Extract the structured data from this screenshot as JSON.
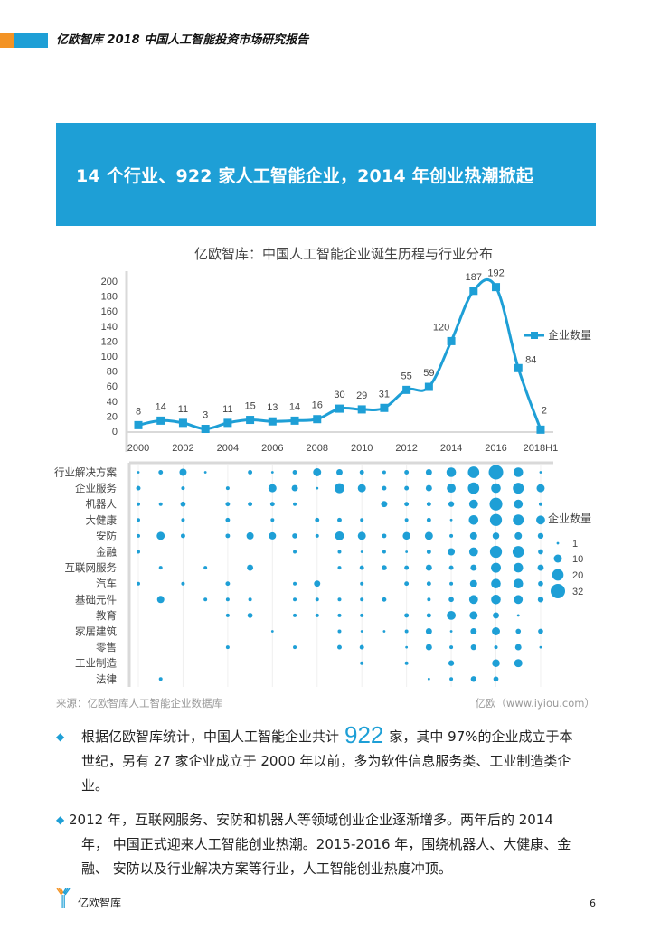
{
  "header": {
    "title": "亿欧智库 2018 中国人工智能投资市场研究报告",
    "accent_orange": "#f39325",
    "accent_blue": "#1e9fd6"
  },
  "banner": {
    "text": "14 个行业、922 家人工智能企业，2014 年创业热潮掀起"
  },
  "chart_data": [
    {
      "type": "line",
      "title": "亿欧智库：中国人工智能企业诞生历程与行业分布",
      "categories": [
        "2000",
        "2001",
        "2002",
        "2003",
        "2004",
        "2005",
        "2006",
        "2007",
        "2008",
        "2009",
        "2010",
        "2011",
        "2012",
        "2013",
        "2014",
        "2015",
        "2016",
        "2017",
        "2018H1"
      ],
      "x_tick_labels": [
        "2000",
        "2002",
        "2004",
        "2006",
        "2008",
        "2010",
        "2012",
        "2014",
        "2016",
        "2018H1"
      ],
      "series": [
        {
          "name": "企业数量",
          "values": [
            8,
            14,
            11,
            3,
            11,
            15,
            13,
            14,
            16,
            30,
            29,
            31,
            55,
            59,
            120,
            187,
            192,
            84,
            2
          ]
        }
      ],
      "ylim": [
        0,
        200
      ],
      "y_ticks": [
        0,
        20,
        40,
        60,
        80,
        100,
        120,
        140,
        160,
        180,
        200
      ],
      "legend": "企业数量",
      "legend_position": "right",
      "color": "#1e9fd6"
    },
    {
      "type": "scatter",
      "subtype": "bubble",
      "x": [
        "2000",
        "2001",
        "2002",
        "2003",
        "2004",
        "2005",
        "2006",
        "2007",
        "2008",
        "2009",
        "2010",
        "2011",
        "2012",
        "2013",
        "2014",
        "2015",
        "2016",
        "2017",
        "2018H1"
      ],
      "rows": [
        "行业解决方案",
        "企业服务",
        "机器人",
        "大健康",
        "安防",
        "金融",
        "互联网服务",
        "汽车",
        "基础元件",
        "教育",
        "家居建筑",
        "零售",
        "工业制造",
        "法律"
      ],
      "values": [
        [
          1,
          3,
          8,
          1,
          0,
          3,
          1,
          3,
          10,
          6,
          3,
          2,
          3,
          6,
          14,
          20,
          32,
          14,
          1
        ],
        [
          3,
          0,
          2,
          0,
          2,
          0,
          10,
          6,
          1,
          15,
          10,
          3,
          3,
          6,
          12,
          20,
          14,
          18,
          10
        ],
        [
          2,
          2,
          4,
          0,
          3,
          3,
          3,
          2,
          0,
          0,
          0,
          6,
          3,
          3,
          5,
          12,
          25,
          12,
          2
        ],
        [
          2,
          0,
          2,
          0,
          3,
          0,
          2,
          0,
          3,
          3,
          2,
          0,
          2,
          3,
          1,
          14,
          22,
          18,
          12
        ],
        [
          2,
          10,
          3,
          0,
          3,
          8,
          8,
          4,
          2,
          12,
          10,
          3,
          9,
          10,
          2,
          8,
          7,
          8,
          5
        ],
        [
          2,
          0,
          0,
          0,
          0,
          0,
          0,
          2,
          0,
          2,
          1,
          2,
          1,
          3,
          8,
          12,
          22,
          20,
          4
        ],
        [
          0,
          2,
          0,
          2,
          0,
          6,
          0,
          0,
          0,
          2,
          3,
          4,
          3,
          6,
          3,
          6,
          15,
          14,
          6
        ],
        [
          2,
          0,
          2,
          0,
          3,
          0,
          0,
          2,
          6,
          0,
          2,
          0,
          3,
          3,
          2,
          8,
          14,
          14,
          4
        ],
        [
          0,
          8,
          0,
          2,
          2,
          2,
          0,
          2,
          2,
          2,
          2,
          3,
          0,
          2,
          4,
          12,
          14,
          12,
          5
        ],
        [
          0,
          0,
          0,
          0,
          2,
          4,
          0,
          2,
          2,
          2,
          2,
          0,
          3,
          3,
          12,
          10,
          6,
          1,
          0
        ],
        [
          0,
          0,
          0,
          0,
          0,
          0,
          1,
          0,
          0,
          2,
          1,
          1,
          2,
          6,
          1,
          6,
          10,
          4,
          4
        ],
        [
          0,
          0,
          0,
          0,
          2,
          0,
          0,
          2,
          0,
          3,
          3,
          0,
          1,
          6,
          2,
          5,
          2,
          6,
          1
        ],
        [
          0,
          0,
          0,
          0,
          0,
          0,
          0,
          0,
          0,
          0,
          2,
          0,
          2,
          0,
          5,
          0,
          9,
          10,
          0
        ],
        [
          0,
          2,
          0,
          0,
          0,
          0,
          0,
          0,
          0,
          0,
          0,
          0,
          0,
          1,
          2,
          5,
          4,
          0,
          0
        ]
      ],
      "legend_title": "企业数量",
      "legend_sizes": [
        1,
        10,
        20,
        32
      ],
      "color": "#1e9fd6"
    }
  ],
  "chart": {
    "title": "亿欧智库：中国人工智能企业诞生历程与行业分布",
    "line_legend": "企业数量",
    "bubble_legend_title": "企业数量",
    "bubble_legend_labels": [
      "1",
      "10",
      "20",
      "32"
    ],
    "y_tick_labels": [
      "0",
      "20",
      "40",
      "60",
      "80",
      "100",
      "120",
      "140",
      "160",
      "180",
      "200"
    ],
    "x_tick_labels": [
      "2000",
      "2002",
      "2004",
      "2006",
      "2008",
      "2010",
      "2012",
      "2014",
      "2016",
      "2018H1"
    ],
    "point_labels": [
      "8",
      "14",
      "11",
      "3",
      "11",
      "15",
      "13",
      "14",
      "16",
      "30",
      "29",
      "31",
      "55",
      "59",
      "120",
      "187",
      "192",
      "84",
      "2"
    ],
    "row_labels": [
      "行业解决方案",
      "企业服务",
      "机器人",
      "大健康",
      "安防",
      "金融",
      "互联网服务",
      "汽车",
      "基础元件",
      "教育",
      "家居建筑",
      "零售",
      "工业制造",
      "法律"
    ]
  },
  "source": {
    "left": "来源：亿欧智库人工智能企业数据库",
    "right": "亿欧（www.iyiou.com）"
  },
  "body": {
    "bullet_glyph": "◆",
    "para1_pre": "根据亿欧智库统计，中国人工智能企业共计",
    "para1_num": "922",
    "para1_post": "家，其中 97%的企业成立于本",
    "para1_line2": "世纪，另有 27 家企业成立于 2000 年以前，多为软件信息服务类、工业制造类企",
    "para1_line3": "业。",
    "para2_line1": "2012 年，互联网服务、安防和机器人等领域创业企业逐渐增多。两年后的 2014",
    "para2_line2": "年， 中国正式迎来人工智能创业热潮。2015-2016 年，围绕机器人、大健康、金",
    "para2_line3": "融、 安防以及行业解决方案等行业，人工智能创业热度冲顶。"
  },
  "footer": {
    "brand": "亿欧智库",
    "page": "6"
  }
}
